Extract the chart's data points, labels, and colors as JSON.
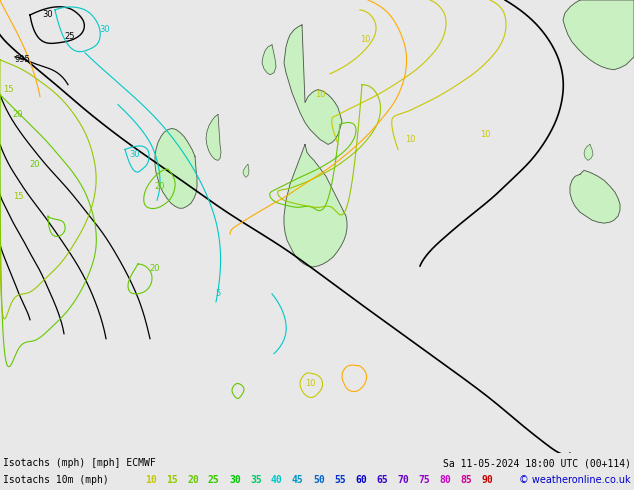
{
  "title_left": "Isotachs (mph) [mph] ECMWF",
  "title_right": "Sa 11-05-2024 18:00 UTC (00+114)",
  "legend_label": "Isotachs 10m (mph)",
  "copyright": "© weatheronline.co.uk",
  "background_color": "#e0e0e0",
  "map_bg_color": "#e8e8e8",
  "green_fill_color": "#c8f0c0",
  "fig_width": 6.34,
  "fig_height": 4.9,
  "dpi": 100,
  "bottom_bar_color": "#e8e8e8",
  "text_color": "#000000",
  "font_size_title": 7,
  "font_size_legend": 7,
  "legend_values": [
    10,
    15,
    20,
    25,
    30,
    35,
    40,
    45,
    50,
    55,
    60,
    65,
    70,
    75,
    80,
    85,
    90
  ],
  "legend_colors": [
    "#c8c800",
    "#96c800",
    "#64c800",
    "#32c800",
    "#00c800",
    "#00c864",
    "#00c8c8",
    "#0096c8",
    "#0064c8",
    "#0032c8",
    "#0000c8",
    "#3200c8",
    "#6400c8",
    "#9600c8",
    "#c800c8",
    "#c80096",
    "#c80000"
  ],
  "col_black": "#000000",
  "col_cyan": "#00c8c8",
  "col_green": "#64c800",
  "col_lgreen": "#96c800",
  "col_yellow": "#c8c800",
  "col_orange": "#ffaa00",
  "col_blue": "#0064c8"
}
